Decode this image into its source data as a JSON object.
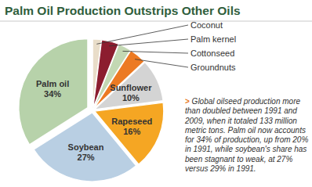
{
  "chart_data": {
    "type": "pie",
    "title": "Palm Oil Production Outstrips Other Oils",
    "categories": [
      "Coconut",
      "Palm kernel",
      "Cottonseed",
      "Groundnuts",
      "Sunflower",
      "Rapeseed",
      "Soybean",
      "Palm oil"
    ],
    "values": [
      2,
      4,
      3,
      4,
      10,
      16,
      27,
      34
    ],
    "value_labels": [
      null,
      null,
      null,
      null,
      "10%",
      "16%",
      "27%",
      "34%"
    ],
    "data_labels": true,
    "colors": [
      "#e9ddc9",
      "#8c1d2f",
      "#c3d8b3",
      "#ec7a23",
      "#d4d4d4",
      "#f5a623",
      "#b9cfe3",
      "#b7d2aa"
    ],
    "annotation": "> Global oilseed production more than doubled between 1991 and 2009, when it totaled 133 million metric tons. Palm oil now accounts for 34% of production, up from 20% in 1991, while soybean's share has been stagnant to weak, at 27% versus 29% in 1991."
  }
}
